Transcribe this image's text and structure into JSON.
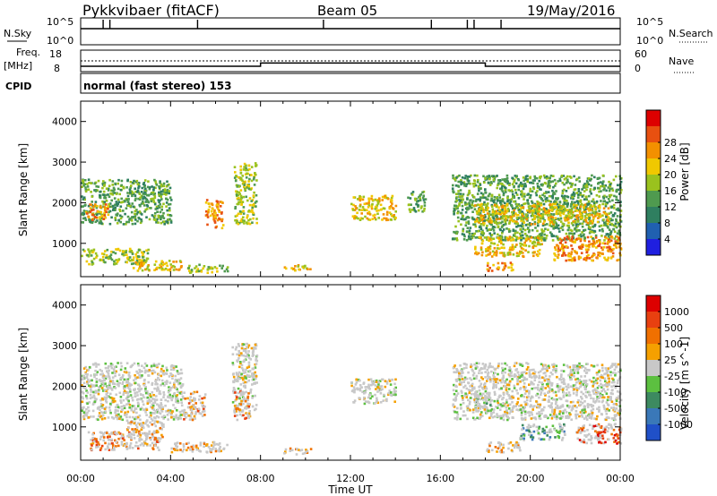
{
  "header": {
    "title": "Pykkvibaer (fitACF)",
    "beam": "Beam 05",
    "date": "19/May/2016"
  },
  "nsky_panel": {
    "left_label": "N.Sky",
    "left_ticks": [
      "10^5",
      "10^0"
    ],
    "right_label": "N.Search",
    "right_ticks": [
      "10^5",
      "10^0"
    ]
  },
  "freq_panel": {
    "left_label_1": "Freq.",
    "left_label_2": "[MHz]",
    "left_ticks": [
      "18",
      "8"
    ],
    "right_label": "Nave",
    "right_ticks": [
      "60",
      "0"
    ],
    "cpid_label": "CPID",
    "cpid_text": "normal (fast stereo) 153"
  },
  "colors": {
    "axis": "#000000",
    "background": "#ffffff",
    "ground_scatter": "#c8c8c8"
  },
  "chart_data": [
    {
      "type": "line",
      "name": "nsky-nsearch",
      "x_range_hours": [
        0,
        24
      ],
      "ylabel_left": "N.Sky",
      "ylabel_right": "N.Search",
      "nsky_level": 10000,
      "spikes_hours": [
        1.0,
        1.3,
        5.2,
        10.8,
        15.6,
        17.2,
        17.5,
        18.7
      ]
    },
    {
      "type": "line",
      "name": "freq-nave",
      "x_range_hours": [
        0,
        24
      ],
      "freq_ylim": [
        8,
        18
      ],
      "nave_ylim": [
        0,
        60
      ],
      "freq_series": [
        {
          "x": 0,
          "y": 10.5
        },
        {
          "x": 8,
          "y": 10.5
        },
        {
          "x": 8,
          "y": 12
        },
        {
          "x": 18,
          "y": 12
        },
        {
          "x": 18,
          "y": 10.5
        },
        {
          "x": 24,
          "y": 10.5
        }
      ],
      "nave_level": 44
    },
    {
      "type": "heatmap",
      "name": "power",
      "xlabel": "",
      "ylabel": "Slant Range [km]",
      "x_range_hours": [
        0,
        24
      ],
      "ylim": [
        180,
        4500
      ],
      "yticks": [
        1000,
        2000,
        3000,
        4000
      ],
      "colorbar": {
        "label": "Power [dB]",
        "ticks": [
          "4",
          "8",
          "12",
          "16",
          "20",
          "24",
          "28"
        ],
        "colors": [
          "#1f1fe0",
          "#2060b0",
          "#2f7f60",
          "#4f9a4f",
          "#9ac21e",
          "#f0c800",
          "#f39000",
          "#e85010",
          "#dd0000"
        ]
      },
      "echo_regions": [
        {
          "x0": 0.0,
          "x1": 4.0,
          "r0": 1500,
          "r1": 2600,
          "level": 3
        },
        {
          "x0": 0.2,
          "x1": 1.2,
          "r0": 1600,
          "r1": 2000,
          "level": 6
        },
        {
          "x0": 0.0,
          "x1": 3.0,
          "r0": 500,
          "r1": 900,
          "level": 4
        },
        {
          "x0": 2.3,
          "x1": 4.5,
          "r0": 350,
          "r1": 600,
          "level": 5
        },
        {
          "x0": 4.7,
          "x1": 6.5,
          "r0": 300,
          "r1": 500,
          "level": 4
        },
        {
          "x0": 5.5,
          "x1": 6.3,
          "r0": 1400,
          "r1": 2100,
          "level": 6
        },
        {
          "x0": 6.8,
          "x1": 7.8,
          "r0": 1500,
          "r1": 3000,
          "level": 4
        },
        {
          "x0": 9.0,
          "x1": 10.2,
          "r0": 350,
          "r1": 500,
          "level": 5
        },
        {
          "x0": 12.0,
          "x1": 14.0,
          "r0": 1600,
          "r1": 2200,
          "level": 5
        },
        {
          "x0": 14.5,
          "x1": 15.3,
          "r0": 1800,
          "r1": 2300,
          "level": 3
        },
        {
          "x0": 16.5,
          "x1": 24.0,
          "r0": 1100,
          "r1": 2700,
          "level": 3
        },
        {
          "x0": 17.5,
          "x1": 23.5,
          "r0": 1500,
          "r1": 2000,
          "level": 5
        },
        {
          "x0": 17.5,
          "x1": 20.5,
          "r0": 700,
          "r1": 1200,
          "level": 5
        },
        {
          "x0": 18.0,
          "x1": 19.2,
          "r0": 350,
          "r1": 550,
          "level": 6
        },
        {
          "x0": 21.0,
          "x1": 24.0,
          "r0": 600,
          "r1": 1200,
          "level": 6
        }
      ]
    },
    {
      "type": "heatmap",
      "name": "velocity",
      "xlabel": "Time UT",
      "ylabel": "Slant Range [km]",
      "x_range_hours": [
        0,
        24
      ],
      "ylim": [
        180,
        4500
      ],
      "yticks": [
        1000,
        2000,
        3000,
        4000
      ],
      "xticks": [
        "00:00",
        "04:00",
        "08:00",
        "12:00",
        "16:00",
        "20:00",
        "00:00"
      ],
      "colorbar": {
        "label": "Velocity [m s^-1]",
        "ticks": [
          "1000",
          "500",
          "100",
          "25",
          "-25",
          "-100",
          "-500",
          "-1000"
        ],
        "colors": [
          "#2050c8",
          "#3a78b8",
          "#3d8a60",
          "#5cc040",
          "#c8c8c8",
          "#f5a000",
          "#f07000",
          "#e84010",
          "#dd0000"
        ]
      },
      "echo_regions": [
        {
          "x0": 0.0,
          "x1": 4.5,
          "r0": 1200,
          "r1": 2600,
          "level": 4
        },
        {
          "x0": 0.3,
          "x1": 3.5,
          "r0": 450,
          "r1": 900,
          "level": 6
        },
        {
          "x0": 2.0,
          "x1": 3.7,
          "r0": 700,
          "r1": 1200,
          "level": 5
        },
        {
          "x0": 4.5,
          "x1": 5.5,
          "r0": 1200,
          "r1": 1900,
          "level": 6
        },
        {
          "x0": 4.0,
          "x1": 6.5,
          "r0": 400,
          "r1": 650,
          "level": 5
        },
        {
          "x0": 6.7,
          "x1": 7.8,
          "r0": 1400,
          "r1": 3100,
          "level": 4
        },
        {
          "x0": 6.8,
          "x1": 7.5,
          "r0": 1200,
          "r1": 1900,
          "level": 6
        },
        {
          "x0": 9.0,
          "x1": 10.2,
          "r0": 350,
          "r1": 500,
          "level": 5
        },
        {
          "x0": 12.0,
          "x1": 14.0,
          "r0": 1600,
          "r1": 2200,
          "level": 4
        },
        {
          "x0": 16.5,
          "x1": 24.0,
          "r0": 1200,
          "r1": 2600,
          "level": 4
        },
        {
          "x0": 17.5,
          "x1": 18.2,
          "r0": 1500,
          "r1": 1900,
          "level": 3
        },
        {
          "x0": 18.0,
          "x1": 19.5,
          "r0": 400,
          "r1": 650,
          "level": 5
        },
        {
          "x0": 22.0,
          "x1": 24.0,
          "r0": 600,
          "r1": 1100,
          "level": 7
        },
        {
          "x0": 19.5,
          "x1": 21.5,
          "r0": 700,
          "r1": 1100,
          "level": 2
        }
      ]
    }
  ]
}
